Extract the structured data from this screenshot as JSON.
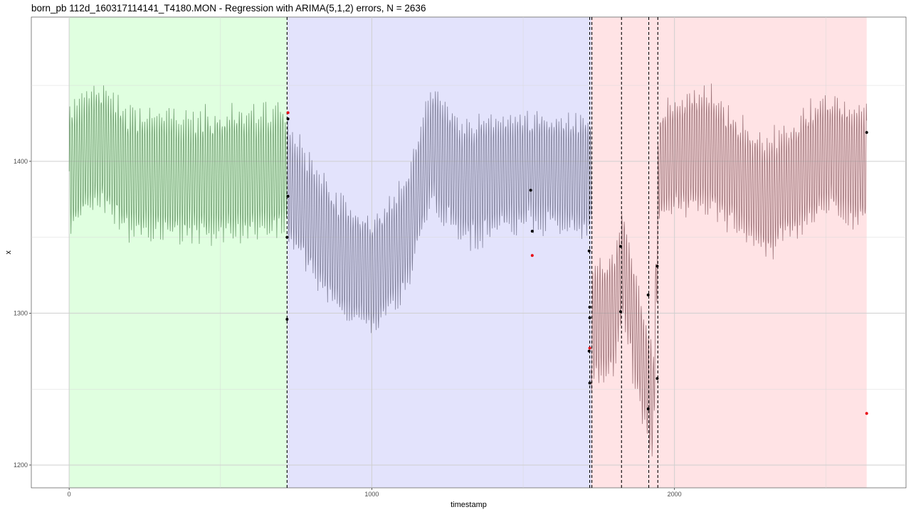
{
  "chart_data": {
    "type": "line",
    "title": "born_pb 112d_160317114141_T4180.MON - Regression with ARIMA(5,1,2) errors, N = 2636",
    "xlabel": "timestamp",
    "ylabel": "x",
    "xlim": [
      -125,
      2765
    ],
    "ylim": [
      1185,
      1495
    ],
    "x_ticks": [
      0,
      1000,
      2000
    ],
    "x_minor_ticks": [
      500,
      1500,
      2500
    ],
    "y_ticks": [
      1200,
      1300,
      1400
    ],
    "y_minor_ticks": [
      1250,
      1350,
      1450
    ],
    "grid": true,
    "legend": "none",
    "n": 2636,
    "segments": [
      {
        "x_start": 0,
        "x_end": 720,
        "fill": "#e0ffe0",
        "line_color": "#6f9c6f",
        "level": 1395,
        "amp": 40,
        "trend": [
          [
            0,
            1395
          ],
          [
            100,
            1410
          ],
          [
            200,
            1392
          ],
          [
            400,
            1390
          ],
          [
            600,
            1392
          ],
          [
            720,
            1395
          ]
        ]
      },
      {
        "x_start": 720,
        "x_end": 1725,
        "fill": "#e3e3fc",
        "line_color": "#7f7f98",
        "level": 1370,
        "amp": 38,
        "trend": [
          [
            720,
            1385
          ],
          [
            900,
            1335
          ],
          [
            1000,
            1325
          ],
          [
            1100,
            1345
          ],
          [
            1200,
            1410
          ],
          [
            1300,
            1385
          ],
          [
            1500,
            1395
          ],
          [
            1725,
            1390
          ]
        ]
      },
      {
        "x_start": 1725,
        "x_end": 2635,
        "fill": "#ffe3e5",
        "line_color": "#9c7378",
        "level": 1390,
        "amp": 38,
        "trend": [
          [
            1725,
            1290
          ],
          [
            1800,
            1300
          ],
          [
            1830,
            1330
          ],
          [
            1900,
            1260
          ],
          [
            1930,
            1240
          ],
          [
            1950,
            1400
          ],
          [
            2100,
            1410
          ],
          [
            2300,
            1375
          ],
          [
            2500,
            1405
          ],
          [
            2635,
            1395
          ]
        ]
      }
    ],
    "changepoints": [
      720,
      1720,
      1727,
      1825,
      1915,
      1945
    ],
    "marked_points": [
      {
        "x": 720,
        "y": 1296,
        "color": "black"
      },
      {
        "x": 720,
        "y": 1350,
        "color": "black"
      },
      {
        "x": 723,
        "y": 1377,
        "color": "black"
      },
      {
        "x": 723,
        "y": 1428,
        "color": "black"
      },
      {
        "x": 723,
        "y": 1432,
        "color": "red"
      },
      {
        "x": 1525,
        "y": 1381,
        "color": "black"
      },
      {
        "x": 1530,
        "y": 1354,
        "color": "black"
      },
      {
        "x": 1530,
        "y": 1338,
        "color": "red"
      },
      {
        "x": 1718,
        "y": 1341,
        "color": "black"
      },
      {
        "x": 1720,
        "y": 1304,
        "color": "black"
      },
      {
        "x": 1720,
        "y": 1297,
        "color": "black"
      },
      {
        "x": 1720,
        "y": 1277,
        "color": "red"
      },
      {
        "x": 1718,
        "y": 1275,
        "color": "black"
      },
      {
        "x": 1720,
        "y": 1254,
        "color": "black"
      },
      {
        "x": 1822,
        "y": 1344,
        "color": "black"
      },
      {
        "x": 1822,
        "y": 1301,
        "color": "black"
      },
      {
        "x": 1913,
        "y": 1312,
        "color": "black"
      },
      {
        "x": 1913,
        "y": 1237,
        "color": "black"
      },
      {
        "x": 1943,
        "y": 1331,
        "color": "black"
      },
      {
        "x": 1943,
        "y": 1257,
        "color": "black"
      },
      {
        "x": 2635,
        "y": 1419,
        "color": "black"
      },
      {
        "x": 2635,
        "y": 1234,
        "color": "red"
      }
    ]
  }
}
